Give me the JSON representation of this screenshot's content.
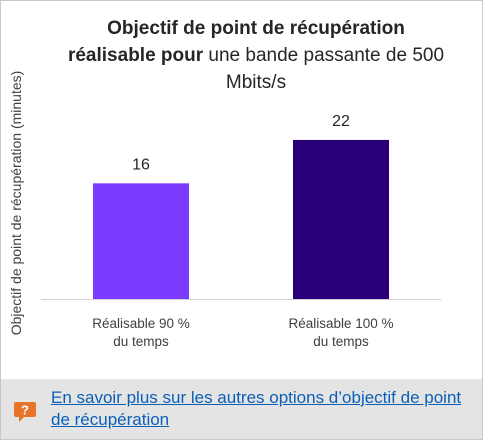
{
  "chart_data": {
    "type": "bar",
    "title_bold": "Objectif de point de récupération réalisable pour",
    "title_regular": "une bande passante de 500 Mbits/s",
    "ylabel": "Objectif de point de récupération (minutes)",
    "xlabel": "",
    "categories": [
      "Réalisable 90 %\ndu temps",
      "Réalisable 100 %\ndu temps"
    ],
    "values": [
      16,
      22
    ],
    "data_labels": [
      "16",
      "22"
    ],
    "colors": [
      "#7b3cff",
      "#2a007a"
    ],
    "ylim": [
      0,
      26
    ],
    "grid": false,
    "legend": "none"
  },
  "footer": {
    "icon": "question-bubble-icon",
    "icon_color": "#e8742a",
    "link_text": "En savoir plus sur les autres options d’objectif de point de récupération",
    "link_color": "#0b5fb8"
  }
}
